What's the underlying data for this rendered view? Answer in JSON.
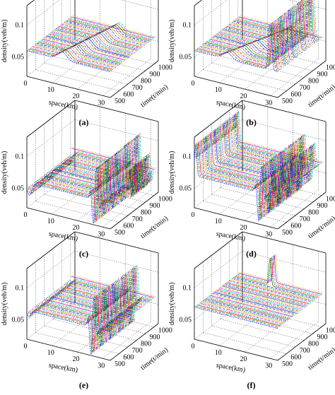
{
  "figure": {
    "panels": [
      "(a)",
      "(b)",
      "(c)",
      "(d)",
      "(e)",
      "(f)"
    ]
  },
  "chart_data": [
    {
      "panel": "(a)",
      "type": "surface3d",
      "xlabel": "space(km)",
      "ylabel": "time(t/min)",
      "zlabel": "density(veh/m)",
      "x_ticks": [
        0,
        10,
        20,
        30
      ],
      "y_ticks": [
        500,
        600,
        700,
        800,
        900,
        1000
      ],
      "z_ticks": [
        0.05,
        0.1
      ],
      "xlim": [
        0,
        33
      ],
      "ylim": [
        500,
        1050
      ],
      "zlim": [
        0.02,
        0.13
      ],
      "base_density": 0.06,
      "features": [
        {
          "kind": "bump",
          "space_km": 14,
          "width_km": 2.5,
          "amplitude": 0.012,
          "time_from": 500,
          "time_to": 1000,
          "drift_km": 6
        }
      ]
    },
    {
      "panel": "(b)",
      "type": "surface3d",
      "xlabel": "space(km)",
      "ylabel": "time(t/min)",
      "zlabel": "density(veh/m)",
      "x_ticks": [
        0,
        10,
        20,
        30
      ],
      "y_ticks": [
        500,
        600,
        700,
        800,
        900,
        1000
      ],
      "z_ticks": [
        0.05,
        0.1
      ],
      "xlim": [
        0,
        33
      ],
      "ylim": [
        500,
        1050
      ],
      "zlim": [
        0.02,
        0.13
      ],
      "base_density": 0.06,
      "features": [
        {
          "kind": "bump",
          "space_km": 13,
          "width_km": 2.5,
          "amplitude": 0.01,
          "time_from": 500,
          "time_to": 1000,
          "drift_km": 10
        },
        {
          "kind": "spike",
          "space_km": 30,
          "width_km": 0.8,
          "amplitude": 0.09,
          "time_from": 500,
          "time_to": 1000
        }
      ]
    },
    {
      "panel": "(c)",
      "type": "surface3d",
      "xlabel": "space(km)",
      "ylabel": "time(t/min)",
      "zlabel": "density(veh/m)",
      "x_ticks": [
        0,
        10,
        20,
        30
      ],
      "y_ticks": [
        500,
        600,
        700,
        800,
        900,
        1000
      ],
      "z_ticks": [
        0.05,
        0.1
      ],
      "xlim": [
        0,
        33
      ],
      "ylim": [
        500,
        1050
      ],
      "zlim": [
        0.02,
        0.13
      ],
      "base_density": 0.06,
      "features": [
        {
          "kind": "dip",
          "space_km": 1,
          "width_km": 1.2,
          "amplitude": -0.02,
          "time_from": 500,
          "time_to": 1000
        },
        {
          "kind": "wave",
          "space_km": 27,
          "width_km": 1.5,
          "amplitude": 0.05,
          "time_from": 500,
          "time_to": 1000
        },
        {
          "kind": "oscillation",
          "space_km": 31,
          "width_km": 2.0,
          "amplitude": 0.03,
          "time_from": 800,
          "time_to": 1000
        }
      ]
    },
    {
      "panel": "(d)",
      "type": "surface3d",
      "xlabel": "space(km)",
      "ylabel": "time(t/min)",
      "zlabel": "density(veh/m)",
      "x_ticks": [
        0,
        10,
        20,
        30
      ],
      "y_ticks": [
        500,
        600,
        700,
        800,
        900,
        1000
      ],
      "z_ticks": [
        0.05,
        0.1
      ],
      "xlim": [
        0,
        33
      ],
      "ylim": [
        500,
        1050
      ],
      "zlim": [
        0.02,
        0.13
      ],
      "base_density": 0.07,
      "features": [
        {
          "kind": "spike",
          "space_km": 0.5,
          "width_km": 0.6,
          "amplitude": 0.05,
          "time_from": 500,
          "time_to": 1000
        },
        {
          "kind": "wave",
          "space_km": 26,
          "width_km": 1.5,
          "amplitude": 0.04,
          "time_from": 500,
          "time_to": 1000
        },
        {
          "kind": "wave",
          "space_km": 30,
          "width_km": 1.2,
          "amplitude": 0.03,
          "time_from": 500,
          "time_to": 1000
        }
      ]
    },
    {
      "panel": "(e)",
      "type": "surface3d",
      "xlabel": "space(km)",
      "ylabel": "time(t/min)",
      "zlabel": "density(veh/m)",
      "x_ticks": [
        0,
        10,
        20,
        30
      ],
      "y_ticks": [
        500,
        600,
        700,
        800,
        900,
        1000
      ],
      "z_ticks": [
        0.05,
        0.1
      ],
      "xlim": [
        0,
        33
      ],
      "ylim": [
        500,
        1050
      ],
      "zlim": [
        0.02,
        0.13
      ],
      "base_density": 0.065,
      "features": [
        {
          "kind": "dip",
          "space_km": 0.8,
          "width_km": 0.8,
          "amplitude": -0.01,
          "time_from": 500,
          "time_to": 1000
        },
        {
          "kind": "wave",
          "space_km": 26,
          "width_km": 1.5,
          "amplitude": 0.045,
          "time_from": 500,
          "time_to": 1000
        }
      ]
    },
    {
      "panel": "(f)",
      "type": "surface3d",
      "xlabel": "space(km)",
      "ylabel": "time(t/min)",
      "zlabel": "density(veh/m)",
      "x_ticks": [
        0,
        10,
        20,
        30
      ],
      "y_ticks": [
        500,
        600,
        700,
        800,
        900,
        1000
      ],
      "z_ticks": [
        0.05,
        0.1
      ],
      "xlim": [
        0,
        33
      ],
      "ylim": [
        500,
        1050
      ],
      "zlim": [
        0.02,
        0.13
      ],
      "base_density": 0.07,
      "features": [
        {
          "kind": "spike",
          "space_km": 14,
          "width_km": 0.6,
          "amplitude": 0.045,
          "time_from": 950,
          "time_to": 1050
        }
      ]
    }
  ],
  "style": {
    "line_colors": [
      "#0000ff",
      "#008000",
      "#ff0000",
      "#00bfbf",
      "#bf00bf",
      "#bfbf00",
      "#404040"
    ],
    "axis_color": "#000000",
    "grid_color": "#555555"
  }
}
